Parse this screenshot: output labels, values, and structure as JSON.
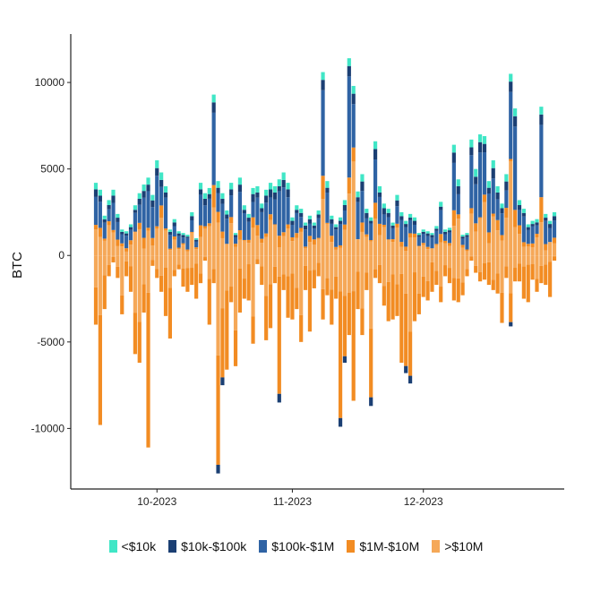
{
  "chart_data": {
    "type": "bar",
    "stacked": true,
    "ylabel": "BTC",
    "ylim": [
      -13500,
      12800
    ],
    "yticks": [
      -10000,
      -5000,
      0,
      5000,
      10000
    ],
    "xlabels": [
      {
        "label": "10-2023",
        "index": 14
      },
      {
        "label": "11-2023",
        "index": 45
      },
      {
        "label": "12-2023",
        "index": 75
      }
    ],
    "series_names": [
      "<$10k",
      "$10k-$100k",
      "$100k-$1M",
      "$1M-$10M",
      ">$10M"
    ],
    "colors": [
      "#40e6c6",
      "#1b3f73",
      "#2f63a4",
      "#f28c23",
      "#f5a858"
    ],
    "legend_position": "bottom",
    "grid": false,
    "positive_totals": [
      4200,
      3800,
      2300,
      3200,
      3800,
      2400,
      1500,
      1400,
      1800,
      2900,
      3600,
      4100,
      4500,
      3500,
      5500,
      4800,
      4000,
      1500,
      2100,
      1400,
      1300,
      1200,
      2500,
      1000,
      4200,
      3600,
      3900,
      9300,
      4300,
      3600,
      2600,
      4200,
      1300,
      4500,
      2900,
      2400,
      3900,
      4000,
      3000,
      3800,
      4200,
      4000,
      4400,
      4800,
      4200,
      2200,
      2900,
      2700,
      1900,
      2300,
      1900,
      2600,
      10600,
      4300,
      2300,
      1800,
      2200,
      3200,
      11400,
      9800,
      3700,
      4700,
      2700,
      2200,
      6600,
      4000,
      3000,
      2700,
      1900,
      3500,
      2500,
      2000,
      2400,
      2200,
      1300,
      1500,
      1400,
      1300,
      1700,
      3100,
      1500,
      1600,
      6400,
      4400,
      1200,
      1300,
      6700,
      5000,
      7000,
      6900,
      4300,
      5500,
      4000,
      3000,
      4700,
      10500,
      8500,
      3200,
      2700,
      1800,
      2000,
      2100,
      8600,
      2400,
      2000,
      2500
    ],
    "negative_totals": [
      -4000,
      -9800,
      -3100,
      -1200,
      -400,
      -1300,
      -3400,
      -1200,
      -2100,
      -5700,
      -6200,
      -3300,
      -11100,
      -600,
      -1300,
      -2100,
      -3500,
      -4800,
      -1200,
      -800,
      -1800,
      -2100,
      -1700,
      -2500,
      -1600,
      -300,
      -4000,
      -1600,
      -12600,
      -7500,
      -6600,
      -2700,
      -6400,
      -3300,
      -2500,
      -2600,
      -5100,
      -500,
      -1700,
      -4900,
      -4200,
      -1600,
      -8500,
      -2000,
      -3600,
      -3700,
      -3100,
      -5000,
      -2000,
      -4400,
      -1900,
      -1200,
      -3700,
      -2300,
      -4000,
      -2500,
      -9900,
      -6200,
      -4600,
      -8400,
      -3100,
      -4600,
      -2000,
      -8700,
      -1300,
      -1600,
      -2900,
      -3800,
      -3700,
      -3500,
      -6200,
      -6800,
      -7400,
      -3800,
      -3400,
      -2400,
      -2600,
      -2100,
      -1700,
      -2700,
      -1200,
      -1600,
      -2600,
      -2700,
      -2300,
      -1200,
      -300,
      -1000,
      -1500,
      -1400,
      -1700,
      -2000,
      -2200,
      -3900,
      -1300,
      -4100,
      -1500,
      -1500,
      -2500,
      -2700,
      -1400,
      -2100,
      -1600,
      -1700,
      -2400,
      -300
    ]
  },
  "legend": {
    "items": [
      "<$10k",
      "$10k-$100k",
      "$100k-$1M",
      "$1M-$10M",
      ">$10M"
    ]
  }
}
